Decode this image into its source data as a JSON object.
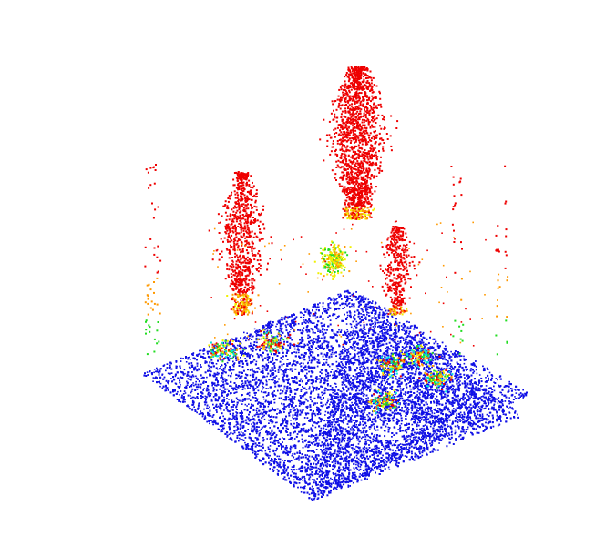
{
  "scene": {
    "description_name": "lidar-point-cloud",
    "colors": {
      "ground": "#1010e6",
      "low": "#00e0e0",
      "mid_low": "#22dd22",
      "mid": "#f0f000",
      "mid_high": "#ff9900",
      "high": "#ee0000",
      "background": "#ffffff"
    },
    "colormap": "jet",
    "objects": [
      {
        "kind": "ground-plane"
      },
      {
        "kind": "tree-tall"
      },
      {
        "kind": "tree-left"
      },
      {
        "kind": "tree-right-small"
      },
      {
        "kind": "understory-shrubs"
      }
    ]
  }
}
